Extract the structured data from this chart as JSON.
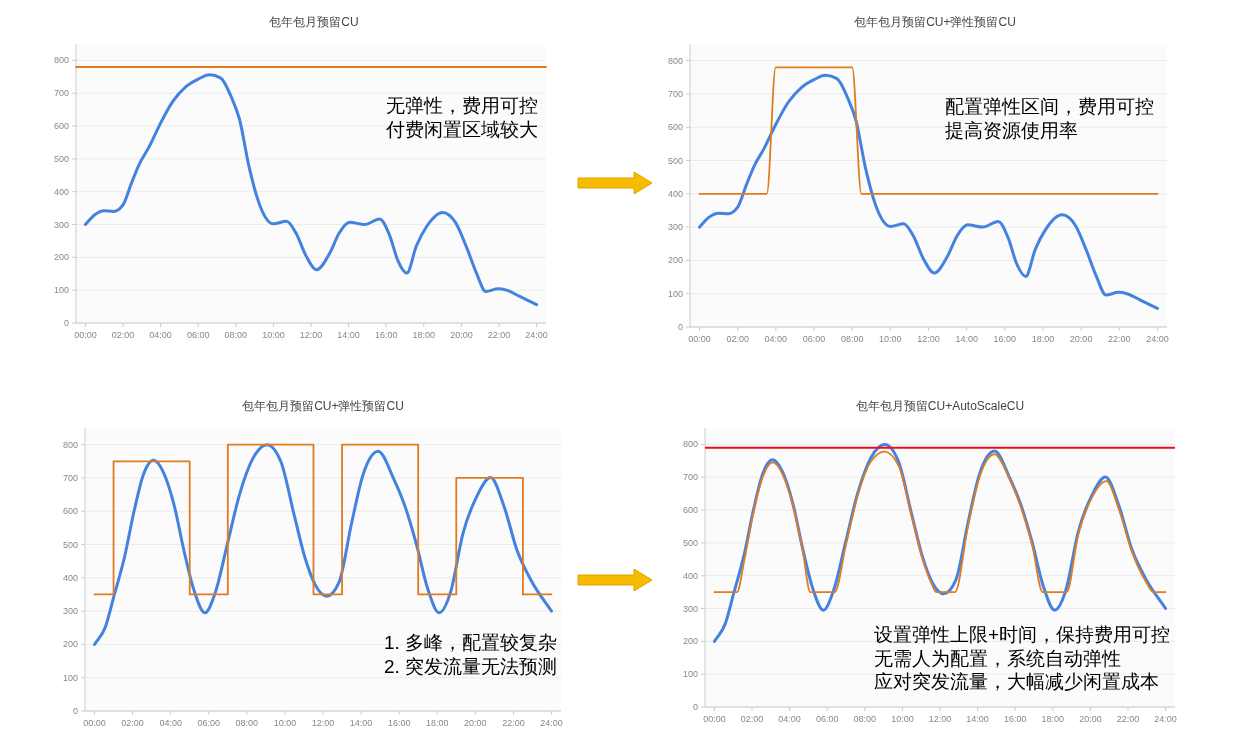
{
  "chart_data": [
    {
      "type": "line",
      "title": "包年包月预留CU",
      "xlim": [
        -0.5,
        24.5
      ],
      "ylim": [
        0,
        850
      ],
      "grid": "y",
      "xticks": [
        {
          "value": 0,
          "label": "00:00"
        },
        {
          "value": 2,
          "label": "02:00"
        },
        {
          "value": 4,
          "label": "04:00"
        },
        {
          "value": 6,
          "label": "06:00"
        },
        {
          "value": 8,
          "label": "08:00"
        },
        {
          "value": 10,
          "label": "10:00"
        },
        {
          "value": 12,
          "label": "12:00"
        },
        {
          "value": 14,
          "label": "14:00"
        },
        {
          "value": 16,
          "label": "16:00"
        },
        {
          "value": 18,
          "label": "18:00"
        },
        {
          "value": 20,
          "label": "20:00"
        },
        {
          "value": 22,
          "label": "22:00"
        },
        {
          "value": 24,
          "label": "24:00"
        }
      ],
      "yticks": [
        0,
        100,
        200,
        300,
        400,
        500,
        600,
        700,
        800
      ],
      "annotations": [
        "无弹性，费用可控",
        "付费闲置区域较大"
      ],
      "series": [
        {
          "color": "#4482e0",
          "x": [
            0,
            0.5,
            1,
            1.5,
            2,
            2.45,
            2.85,
            3.4,
            4,
            4.65,
            5.35,
            6,
            6.6,
            7.2,
            7.75,
            8.2,
            8.7,
            9.3,
            10,
            10.7,
            11.2,
            11.75,
            12.3,
            13,
            13.5,
            14.05,
            14.85,
            15.65,
            16.2,
            16.6,
            17.1,
            17.6,
            18.15,
            19,
            19.7,
            20.25,
            20.8,
            21.3,
            21.95,
            22.4,
            23.1,
            24
          ],
          "values": [
            300,
            330,
            342,
            340,
            360,
            426,
            482,
            538,
            609,
            675,
            720,
            743,
            756,
            746,
            690,
            620,
            477,
            355,
            302,
            310,
            274,
            203,
            162,
            213,
            274,
            307,
            300,
            317,
            264,
            193,
            152,
            234,
            294,
            337,
            305,
            234,
            152,
            96,
            104,
            100,
            81,
            56
          ]
        },
        {
          "color": "#e07b1f",
          "x": [
            -0.5,
            24.5
          ],
          "values": [
            780,
            780
          ]
        }
      ]
    },
    {
      "type": "line",
      "title": "包年包月预留CU+弹性预留CU",
      "xlim": [
        -0.5,
        24.5
      ],
      "ylim": [
        0,
        850
      ],
      "grid": "y",
      "xticks": [
        {
          "value": 0,
          "label": "00:00"
        },
        {
          "value": 2,
          "label": "02:00"
        },
        {
          "value": 4,
          "label": "04:00"
        },
        {
          "value": 6,
          "label": "06:00"
        },
        {
          "value": 8,
          "label": "08:00"
        },
        {
          "value": 10,
          "label": "10:00"
        },
        {
          "value": 12,
          "label": "12:00"
        },
        {
          "value": 14,
          "label": "14:00"
        },
        {
          "value": 16,
          "label": "16:00"
        },
        {
          "value": 18,
          "label": "18:00"
        },
        {
          "value": 20,
          "label": "20:00"
        },
        {
          "value": 22,
          "label": "22:00"
        },
        {
          "value": 24,
          "label": "24:00"
        }
      ],
      "yticks": [
        0,
        100,
        200,
        300,
        400,
        500,
        600,
        700,
        800
      ],
      "annotations": [
        "配置弹性区间，费用可控",
        "提高资源使用率"
      ],
      "series": [
        {
          "color": "#4482e0",
          "x": [
            0,
            0.5,
            1,
            1.5,
            2,
            2.45,
            2.85,
            3.4,
            4,
            4.65,
            5.35,
            6,
            6.6,
            7.2,
            7.75,
            8.2,
            8.7,
            9.3,
            10,
            10.7,
            11.2,
            11.75,
            12.3,
            13,
            13.5,
            14.05,
            14.85,
            15.65,
            16.2,
            16.6,
            17.1,
            17.6,
            18.15,
            19,
            19.7,
            20.25,
            20.8,
            21.3,
            21.95,
            22.4,
            23.1,
            24
          ],
          "values": [
            300,
            330,
            342,
            340,
            360,
            426,
            482,
            538,
            609,
            675,
            720,
            743,
            756,
            746,
            690,
            620,
            477,
            355,
            302,
            310,
            274,
            203,
            162,
            213,
            274,
            307,
            300,
            317,
            264,
            193,
            152,
            234,
            294,
            337,
            305,
            234,
            152,
            96,
            104,
            100,
            81,
            56
          ]
        },
        {
          "color": "#e07b1f",
          "x": [
            0,
            3.53,
            3.99,
            8.0,
            8.48,
            24
          ],
          "values": [
            400,
            400,
            780,
            780,
            400,
            400
          ]
        }
      ]
    },
    {
      "type": "line",
      "title": "包年包月预留CU+弹性预留CU",
      "xlim": [
        -0.5,
        24.5
      ],
      "ylim": [
        0,
        850
      ],
      "grid": "y",
      "xticks": [
        {
          "value": 0,
          "label": "00:00"
        },
        {
          "value": 2,
          "label": "02:00"
        },
        {
          "value": 4,
          "label": "04:00"
        },
        {
          "value": 6,
          "label": "06:00"
        },
        {
          "value": 8,
          "label": "08:00"
        },
        {
          "value": 10,
          "label": "10:00"
        },
        {
          "value": 12,
          "label": "12:00"
        },
        {
          "value": 14,
          "label": "14:00"
        },
        {
          "value": 16,
          "label": "16:00"
        },
        {
          "value": 18,
          "label": "18:00"
        },
        {
          "value": 20,
          "label": "20:00"
        },
        {
          "value": 22,
          "label": "22:00"
        },
        {
          "value": 24,
          "label": "24:00"
        }
      ],
      "yticks": [
        0,
        100,
        200,
        300,
        400,
        500,
        600,
        700,
        800
      ],
      "annotations": [
        "1. 多峰，配置较复杂",
        "2. 突发流量无法预测"
      ],
      "series": [
        {
          "color": "#4482e0",
          "x": [
            0,
            0.58,
            1.03,
            1.57,
            2.1,
            2.56,
            3.1,
            3.6,
            4.19,
            4.7,
            5.2,
            5.8,
            6.35,
            6.98,
            7.6,
            8.34,
            9.06,
            9.78,
            10.5,
            11.05,
            11.6,
            12.2,
            12.85,
            13.5,
            14.1,
            14.9,
            15.7,
            16.3,
            16.9,
            17.5,
            18.1,
            18.7,
            19.35,
            20.1,
            20.8,
            21.5,
            22.2,
            22.97,
            24
          ],
          "values": [
            200,
            254,
            347,
            461,
            606,
            709,
            753,
            719,
            616,
            481,
            367,
            295,
            357,
            502,
            647,
            761,
            800,
            750,
            585,
            461,
            378,
            345,
            388,
            564,
            709,
            780,
            699,
            616,
            502,
            367,
            295,
            357,
            533,
            647,
            701,
            616,
            481,
            388,
            300
          ]
        },
        {
          "type": "step",
          "color": "#e07b1f",
          "x": [
            0,
            1,
            5,
            7,
            11.5,
            13,
            17,
            19,
            22.5,
            24
          ],
          "values": [
            350,
            750,
            350,
            800,
            350,
            800,
            350,
            700,
            350,
            350
          ]
        }
      ]
    },
    {
      "type": "line",
      "title": "包年包月预留CU+AutoScaleCU",
      "xlim": [
        -0.5,
        24.5
      ],
      "ylim": [
        0,
        850
      ],
      "grid": "y",
      "xticks": [
        {
          "value": 0,
          "label": "00:00"
        },
        {
          "value": 2,
          "label": "02:00"
        },
        {
          "value": 4,
          "label": "04:00"
        },
        {
          "value": 6,
          "label": "06:00"
        },
        {
          "value": 8,
          "label": "08:00"
        },
        {
          "value": 10,
          "label": "10:00"
        },
        {
          "value": 12,
          "label": "12:00"
        },
        {
          "value": 14,
          "label": "14:00"
        },
        {
          "value": 16,
          "label": "16:00"
        },
        {
          "value": 18,
          "label": "18:00"
        },
        {
          "value": 20,
          "label": "20:00"
        },
        {
          "value": 22,
          "label": "22:00"
        },
        {
          "value": 24,
          "label": "24:00"
        }
      ],
      "yticks": [
        0,
        100,
        200,
        300,
        400,
        500,
        600,
        700,
        800
      ],
      "annotations": [
        "设置弹性上限+时间，保持费用可控",
        "无需人为配置，系统自动弹性",
        "应对突发流量，大幅减少闲置成本"
      ],
      "ref_lines": [
        {
          "axis": "y",
          "value": 790,
          "color": "#e8101a"
        }
      ],
      "series": [
        {
          "color": "#4482e0",
          "x": [
            0,
            0.58,
            1.03,
            1.57,
            2.1,
            2.56,
            3.1,
            3.6,
            4.19,
            4.7,
            5.2,
            5.8,
            6.35,
            6.98,
            7.6,
            8.34,
            9.06,
            9.78,
            10.5,
            11.05,
            11.6,
            12.2,
            12.85,
            13.5,
            14.1,
            14.9,
            15.7,
            16.3,
            16.9,
            17.5,
            18.1,
            18.7,
            19.35,
            20.1,
            20.8,
            21.5,
            22.2,
            22.97,
            24
          ],
          "values": [
            200,
            254,
            347,
            461,
            606,
            709,
            753,
            719,
            616,
            481,
            367,
            295,
            357,
            502,
            647,
            761,
            800,
            750,
            585,
            461,
            378,
            345,
            388,
            564,
            709,
            780,
            699,
            616,
            502,
            367,
            295,
            357,
            533,
            647,
            701,
            616,
            481,
            388,
            300
          ]
        },
        {
          "color": "#e07b1f",
          "x": [
            0,
            1.2,
            1.6,
            2.1,
            2.6,
            3.1,
            3.6,
            4.2,
            4.7,
            5.1,
            6.4,
            7.0,
            7.6,
            8.35,
            9.05,
            9.8,
            10.5,
            11.05,
            11.6,
            11.8,
            12.8,
            13.5,
            14.1,
            14.9,
            15.7,
            16.3,
            16.9,
            17.46,
            18.74,
            19.35,
            20.1,
            20.85,
            21.5,
            22.2,
            22.97,
            23.35,
            24
          ],
          "values": [
            350,
            350,
            450,
            600,
            705,
            745,
            712,
            610,
            475,
            350,
            350,
            495,
            640,
            750,
            778,
            735,
            580,
            455,
            370,
            350,
            350,
            555,
            700,
            770,
            695,
            610,
            495,
            350,
            350,
            525,
            640,
            688,
            605,
            475,
            380,
            350,
            350
          ]
        }
      ]
    }
  ]
}
